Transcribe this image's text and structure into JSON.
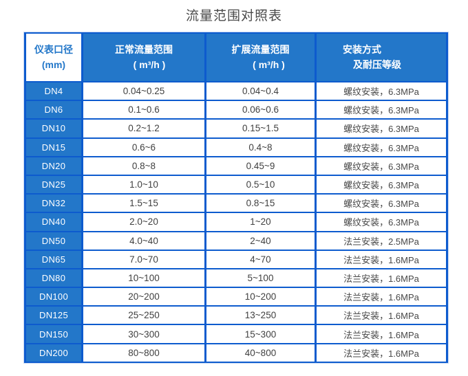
{
  "page_title": "流量范围对照表",
  "colors": {
    "cell_blue": "#2377C9",
    "grid_blue": "#0D5BCE",
    "outer_halo": "#C9D9F3",
    "header_text": "#FFFFFF",
    "first_header_text": "#2377C9",
    "data_text": "#3F3F3F",
    "title_text": "#4A4A4A"
  },
  "chart_data": {
    "type": "table",
    "title": "流量范围对照表",
    "columns": [
      {
        "line1": "仪表口径",
        "line2": "(mm)"
      },
      {
        "line1": "正常流量范围",
        "line2": "( m³/h )"
      },
      {
        "line1": "扩展流量范围",
        "line2": "( m³/h )"
      },
      {
        "line1": "安装方式",
        "line2": "及耐压等级"
      }
    ],
    "rows": [
      {
        "dn": "DN4",
        "normal_range": "0.04~0.25",
        "extended_range": "0.04~0.4",
        "installation": "螺纹安装，6.3MPa"
      },
      {
        "dn": "DN6",
        "normal_range": "0.1~0.6",
        "extended_range": "0.06~0.6",
        "installation": "螺纹安装，6.3MPa"
      },
      {
        "dn": "DN10",
        "normal_range": "0.2~1.2",
        "extended_range": "0.15~1.5",
        "installation": "螺纹安装，6.3MPa"
      },
      {
        "dn": "DN15",
        "normal_range": "0.6~6",
        "extended_range": "0.4~8",
        "installation": "螺纹安装，6.3MPa"
      },
      {
        "dn": "DN20",
        "normal_range": "0.8~8",
        "extended_range": "0.45~9",
        "installation": "螺纹安装，6.3MPa"
      },
      {
        "dn": "DN25",
        "normal_range": "1.0~10",
        "extended_range": "0.5~10",
        "installation": "螺纹安装，6.3MPa"
      },
      {
        "dn": "DN32",
        "normal_range": "1.5~15",
        "extended_range": "0.8~15",
        "installation": "螺纹安装，6.3MPa"
      },
      {
        "dn": "DN40",
        "normal_range": "2.0~20",
        "extended_range": "1~20",
        "installation": "螺纹安装，6.3MPa"
      },
      {
        "dn": "DN50",
        "normal_range": "4.0~40",
        "extended_range": "2~40",
        "installation": "法兰安装，2.5MPa"
      },
      {
        "dn": "DN65",
        "normal_range": "7.0~70",
        "extended_range": "4~70",
        "installation": "法兰安装，1.6MPa"
      },
      {
        "dn": "DN80",
        "normal_range": "10~100",
        "extended_range": "5~100",
        "installation": "法兰安装，1.6MPa"
      },
      {
        "dn": "DN100",
        "normal_range": "20~200",
        "extended_range": "10~200",
        "installation": "法兰安装，1.6MPa"
      },
      {
        "dn": "DN125",
        "normal_range": "25~250",
        "extended_range": "13~250",
        "installation": "法兰安装，1.6MPa"
      },
      {
        "dn": "DN150",
        "normal_range": "30~300",
        "extended_range": "15~300",
        "installation": "法兰安装，1.6MPa"
      },
      {
        "dn": "DN200",
        "normal_range": "80~800",
        "extended_range": "40~800",
        "installation": "法兰安装，1.6MPa"
      }
    ]
  }
}
